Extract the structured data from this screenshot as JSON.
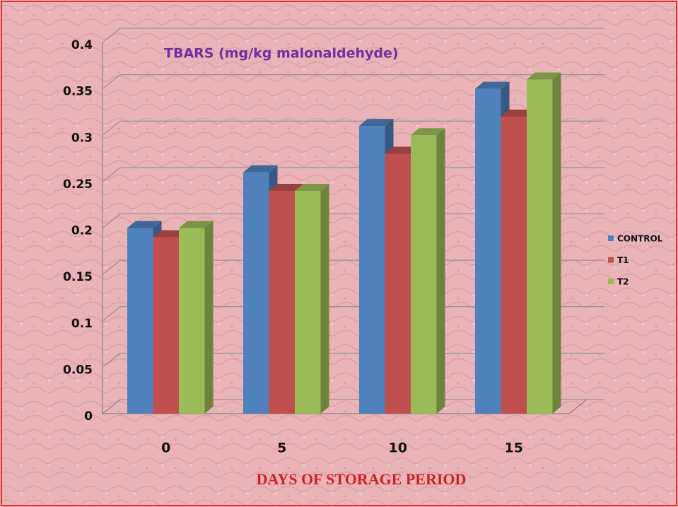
{
  "chart_data": {
    "type": "bar3d",
    "title": "TBARS  (mg/kg malonaldehyde)",
    "x_label": "DAYS OF STORAGE PERIOD",
    "categories": [
      "0",
      "5",
      "10",
      "15"
    ],
    "series": [
      {
        "name": "CONTROL",
        "color": "#4f81bd",
        "values": [
          0.2,
          0.26,
          0.31,
          0.35
        ]
      },
      {
        "name": "T1",
        "color": "#c0504d",
        "values": [
          0.19,
          0.24,
          0.28,
          0.32
        ]
      },
      {
        "name": "T2",
        "color": "#9bbb59",
        "values": [
          0.2,
          0.24,
          0.3,
          0.36
        ]
      }
    ],
    "ylim": [
      0,
      0.4
    ],
    "yticks": [
      0,
      0.05,
      0.1,
      0.15,
      0.2,
      0.25,
      0.3,
      0.35,
      0.4
    ],
    "grid": true,
    "legend": "right"
  }
}
